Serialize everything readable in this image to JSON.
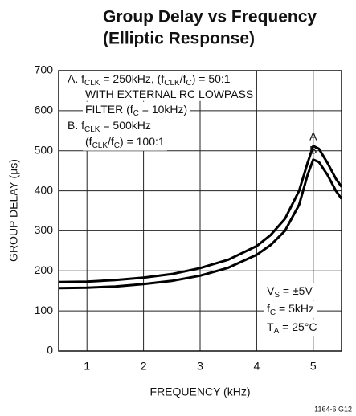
{
  "chart_data": {
    "type": "line",
    "title": [
      "Group Delay vs Frequency",
      "(Elliptic Response)"
    ],
    "x_label": "FREQUENCY (kHz)",
    "y_label": "GROUP DELAY (µs)",
    "xlim": [
      0.5,
      5.5
    ],
    "ylim": [
      0,
      700
    ],
    "xticks": [
      1,
      2,
      3,
      4,
      5
    ],
    "yticks": [
      0,
      100,
      200,
      300,
      400,
      500,
      600,
      700
    ],
    "grid": true,
    "x": [
      0.5,
      1,
      1.5,
      2,
      2.5,
      3,
      3.5,
      4,
      4.25,
      4.5,
      4.75,
      4.9,
      5,
      5.1,
      5.25,
      5.4,
      5.5
    ],
    "series": [
      {
        "name": "A",
        "color": "#000000",
        "values": [
          172,
          173,
          177,
          183,
          192,
          207,
          228,
          262,
          290,
          330,
          400,
          470,
          512,
          505,
          470,
          430,
          410
        ]
      },
      {
        "name": "B",
        "color": "#000000",
        "values": [
          157,
          158,
          161,
          167,
          175,
          188,
          208,
          240,
          265,
          300,
          365,
          440,
          478,
          472,
          440,
          400,
          380
        ]
      }
    ],
    "annotations": [
      [
        [
          {
            "t": "A. f"
          },
          {
            "t": "CLK",
            "sub": true
          },
          {
            "t": " = 250kHz, (f"
          },
          {
            "t": "CLK",
            "sub": true
          },
          {
            "t": "/f"
          },
          {
            "t": "C",
            "sub": true
          },
          {
            "t": ") = 50:1"
          }
        ],
        [
          {
            "t": "WITH EXTERNAL RC LOWPASS"
          }
        ],
        [
          {
            "t": "FILTER (f"
          },
          {
            "t": "C",
            "sub": true
          },
          {
            "t": " = 10kHz)"
          }
        ],
        [
          {
            "t": "B. f"
          },
          {
            "t": "CLK",
            "sub": true
          },
          {
            "t": " = 500kHz"
          }
        ],
        [
          {
            "t": "(f"
          },
          {
            "t": "CLK",
            "sub": true
          },
          {
            "t": "/f"
          },
          {
            "t": "C",
            "sub": true
          },
          {
            "t": ") = 100:1"
          }
        ]
      ],
      [
        [
          {
            "t": "V"
          },
          {
            "t": "S",
            "sub": true
          },
          {
            "t": " = ±5V"
          }
        ],
        [
          {
            "t": "f"
          },
          {
            "t": "C",
            "sub": true
          },
          {
            "t": " = 5kHz"
          }
        ],
        [
          {
            "t": "T"
          },
          {
            "t": "A",
            "sub": true
          },
          {
            "t": " = 25°C"
          }
        ]
      ]
    ],
    "footnote": "1164-6 G12"
  }
}
